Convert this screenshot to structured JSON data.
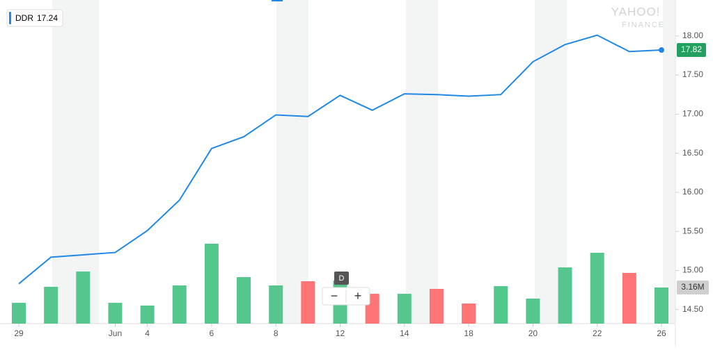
{
  "chart_data": {
    "type": "line",
    "categories": [
      "29",
      null,
      null,
      "Jun",
      "4",
      null,
      "6",
      null,
      "8",
      null,
      "12",
      null,
      "14",
      null,
      "18",
      null,
      "20",
      null,
      "22",
      null,
      "26"
    ],
    "series": [
      {
        "name": "DDR",
        "color": "#1f88e6",
        "values": [
          14.83,
          15.17,
          15.2,
          15.23,
          15.51,
          15.9,
          16.56,
          16.71,
          16.99,
          16.97,
          17.24,
          17.05,
          17.26,
          17.25,
          17.23,
          17.25,
          17.67,
          17.89,
          18.01,
          17.8,
          17.82
        ]
      }
    ],
    "hover_index": 10,
    "volume": {
      "values": [
        1.82,
        3.22,
        4.56,
        1.82,
        1.58,
        3.34,
        6.99,
        4.07,
        3.34,
        3.71,
        3.77,
        2.61,
        2.61,
        3.04,
        1.76,
        3.28,
        2.19,
        4.92,
        6.2,
        4.44,
        3.16
      ],
      "colors": [
        "#55c68d",
        "#55c68d",
        "#55c68d",
        "#55c68d",
        "#55c68d",
        "#55c68d",
        "#55c68d",
        "#55c68d",
        "#55c68d",
        "#ff7474",
        "#55c68d",
        "#ff7474",
        "#55c68d",
        "#ff7474",
        "#ff7474",
        "#55c68d",
        "#55c68d",
        "#55c68d",
        "#55c68d",
        "#ff7474",
        "#55c68d"
      ],
      "value_labels": [
        null,
        null,
        null,
        null,
        null,
        null,
        null,
        null,
        null,
        null,
        null,
        null,
        null,
        null,
        null,
        null,
        null,
        null,
        null,
        null,
        "3.16M"
      ]
    },
    "ylim": [
      14.32,
      18.46
    ],
    "yticks": [
      {
        "value": 14.5,
        "label": "14.50"
      },
      {
        "value": 15,
        "label": "15.00"
      },
      {
        "value": 15.5,
        "label": "15.50"
      },
      {
        "value": 16,
        "label": "16.00"
      },
      {
        "value": 16.5,
        "label": "16.50"
      },
      {
        "value": 17,
        "label": "17.00"
      },
      {
        "value": 17.5,
        "label": "17.50"
      },
      {
        "value": 18,
        "label": "18.00"
      }
    ],
    "watermark": [
      "YAHOO!",
      "FINANCE"
    ],
    "controls": {
      "interval": "D",
      "zoom_out": "−",
      "zoom_in": "+"
    }
  }
}
